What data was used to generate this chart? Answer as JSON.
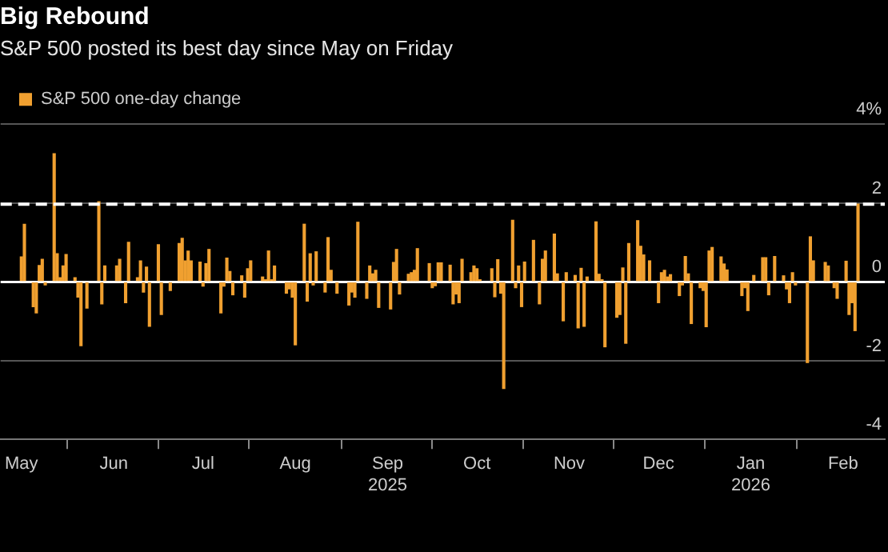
{
  "chart_data": {
    "type": "bar",
    "title": "Big Rebound",
    "subtitle": "S&P 500 posted its best day since May on Friday",
    "x": [
      "2025-05-01",
      "2025-05-02",
      "2025-05-05",
      "2025-05-06",
      "2025-05-07",
      "2025-05-08",
      "2025-05-09",
      "2025-05-12",
      "2025-05-13",
      "2025-05-14",
      "2025-05-15",
      "2025-05-16",
      "2025-05-19",
      "2025-05-20",
      "2025-05-21",
      "2025-05-23",
      "2025-05-27",
      "2025-05-28",
      "2025-05-29",
      "2025-06-02",
      "2025-06-03",
      "2025-06-05",
      "2025-06-06",
      "2025-06-09",
      "2025-06-10",
      "2025-06-11",
      "2025-06-12",
      "2025-06-13",
      "2025-06-16",
      "2025-06-17",
      "2025-06-20",
      "2025-06-23",
      "2025-06-24",
      "2025-06-25",
      "2025-06-26",
      "2025-06-27",
      "2025-06-30",
      "2025-07-01",
      "2025-07-02",
      "2025-07-03",
      "2025-07-07",
      "2025-07-08",
      "2025-07-09",
      "2025-07-10",
      "2025-07-11",
      "2025-07-14",
      "2025-07-15",
      "2025-07-16",
      "2025-07-17",
      "2025-07-21",
      "2025-07-22",
      "2025-07-23",
      "2025-07-24",
      "2025-07-25",
      "2025-07-29",
      "2025-07-30",
      "2025-07-31",
      "2025-08-01",
      "2025-08-04",
      "2025-08-05",
      "2025-08-06",
      "2025-08-07",
      "2025-08-08",
      "2025-08-11",
      "2025-08-12",
      "2025-08-13",
      "2025-08-15",
      "2025-08-19",
      "2025-08-20",
      "2025-08-21",
      "2025-08-22",
      "2025-08-25",
      "2025-08-26",
      "2025-08-27",
      "2025-08-28",
      "2025-08-29",
      "2025-09-02",
      "2025-09-03",
      "2025-09-04",
      "2025-09-05",
      "2025-09-08",
      "2025-09-09",
      "2025-09-10",
      "2025-09-11",
      "2025-09-15",
      "2025-09-16",
      "2025-09-17",
      "2025-09-18",
      "2025-09-19",
      "2025-09-22",
      "2025-09-23",
      "2025-09-24",
      "2025-09-25",
      "2025-09-26",
      "2025-09-29",
      "2025-09-30",
      "2025-10-01",
      "2025-10-02",
      "2025-10-06",
      "2025-10-07",
      "2025-10-08",
      "2025-10-09",
      "2025-10-10",
      "2025-10-13",
      "2025-10-14",
      "2025-10-15",
      "2025-10-16",
      "2025-10-17",
      "2025-10-20",
      "2025-10-22",
      "2025-10-23",
      "2025-10-24",
      "2025-10-27",
      "2025-10-28",
      "2025-10-30",
      "2025-10-31",
      "2025-11-03",
      "2025-11-04",
      "2025-11-05",
      "2025-11-06",
      "2025-11-07",
      "2025-11-10",
      "2025-11-11",
      "2025-11-12",
      "2025-11-13",
      "2025-11-17",
      "2025-11-18",
      "2025-11-19",
      "2025-11-20",
      "2025-11-21",
      "2025-11-24",
      "2025-11-25",
      "2025-11-26",
      "2025-11-28",
      "2025-12-01",
      "2025-12-02",
      "2025-12-03",
      "2025-12-04",
      "2025-12-05",
      "2025-12-08",
      "2025-12-09",
      "2025-12-10",
      "2025-12-11",
      "2025-12-12",
      "2025-12-15",
      "2025-12-16",
      "2025-12-17",
      "2025-12-18",
      "2025-12-19",
      "2025-12-22",
      "2025-12-23",
      "2025-12-24",
      "2025-12-29",
      "2025-12-30",
      "2025-12-31",
      "2026-01-02",
      "2026-01-05",
      "2026-01-06",
      "2026-01-07",
      "2026-01-09",
      "2026-01-12",
      "2026-01-13",
      "2026-01-14",
      "2026-01-15",
      "2026-01-16",
      "2026-01-20",
      "2026-01-21",
      "2026-01-22",
      "2026-01-26",
      "2026-01-27",
      "2026-01-29",
      "2026-01-30",
      "2026-02-02",
      "2026-02-03",
      "2026-02-04",
      "2026-02-05",
      "2026-02-06"
    ],
    "series": [
      {
        "name": "S&P 500 one-day change",
        "color": "#f0a030",
        "values": [
          0.63,
          1.46,
          -0.63,
          -0.79,
          0.41,
          0.57,
          -0.08,
          3.25,
          0.71,
          0.1,
          0.4,
          0.69,
          0.1,
          -0.39,
          -1.62,
          -0.67,
          2.03,
          -0.56,
          0.4,
          0.4,
          0.57,
          -0.53,
          1.0,
          0.1,
          0.53,
          -0.26,
          0.37,
          -1.13,
          0.94,
          -0.83,
          -0.22,
          0.97,
          1.1,
          0.53,
          0.78,
          0.53,
          0.5,
          -0.11,
          0.46,
          0.82,
          -0.79,
          -0.11,
          0.6,
          0.26,
          -0.33,
          0.15,
          -0.39,
          0.33,
          0.53,
          0.12,
          0.05,
          0.78,
          0.05,
          0.4,
          -0.29,
          -0.18,
          -0.39,
          -1.6,
          1.46,
          -0.49,
          0.71,
          -0.08,
          0.76,
          -0.26,
          1.12,
          0.29,
          -0.29,
          -0.59,
          -0.26,
          -0.39,
          1.51,
          -0.42,
          0.4,
          0.2,
          0.29,
          -0.65,
          -0.69,
          0.49,
          0.82,
          -0.31,
          0.19,
          0.23,
          0.29,
          0.84,
          0.46,
          -0.15,
          -0.1,
          0.48,
          0.48,
          0.42,
          -0.56,
          -0.31,
          -0.53,
          0.57,
          0.23,
          0.4,
          0.33,
          0.05,
          0.33,
          -0.38,
          0.56,
          -0.29,
          -2.71,
          1.56,
          -0.15,
          0.4,
          -0.63,
          0.5,
          1.05,
          -0.56,
          0.57,
          0.78,
          1.21,
          0.2,
          -0.99,
          0.23,
          0.16,
          -1.17,
          0.34,
          -1.13,
          0.12,
          1.52,
          0.19,
          0.05,
          -1.65,
          -0.9,
          -0.83,
          0.35,
          -1.56,
          0.97,
          1.55,
          0.9,
          0.68,
          0.53,
          -0.53,
          0.23,
          0.29,
          0.12,
          0.18,
          -0.35,
          -0.08,
          0.64,
          0.2,
          -1.06,
          -0.15,
          -0.22,
          -1.14,
          0.78,
          0.87,
          0.63,
          0.45,
          0.3,
          -0.35,
          -0.15,
          -0.73,
          0.16,
          0.61,
          0.61,
          -0.33,
          0.64,
          0.15,
          -0.18,
          -0.53,
          0.23,
          -0.08,
          -2.05,
          1.14,
          0.53,
          0.49,
          0.4,
          -0.15,
          -0.42,
          0.52,
          -0.83,
          -0.53,
          -1.24,
          1.97
        ]
      }
    ],
    "xlim": [
      "2025-04-24",
      "2026-02-15"
    ],
    "xticks": [
      {
        "value": "2025-05-01",
        "label": "May"
      },
      {
        "value": "2025-06-01",
        "label": "Jun"
      },
      {
        "value": "2025-07-01",
        "label": "Jul"
      },
      {
        "value": "2025-08-01",
        "label": "Aug"
      },
      {
        "value": "2025-09-01",
        "label": "Sep\n2025"
      },
      {
        "value": "2025-10-01",
        "label": "Oct"
      },
      {
        "value": "2025-11-01",
        "label": "Nov"
      },
      {
        "value": "2025-12-01",
        "label": "Dec"
      },
      {
        "value": "2026-01-01",
        "label": "Jan\n2026"
      },
      {
        "value": "2026-02-01",
        "label": "Feb"
      }
    ],
    "ylim": [
      -4,
      4
    ],
    "yticks": [
      {
        "value": 4,
        "label": "4%"
      },
      2,
      0,
      -2,
      -4
    ],
    "ref_lines": [
      {
        "axis": "y",
        "value": 1.97,
        "color": "#ffffff",
        "line_style": "dashed"
      }
    ],
    "grid": "y",
    "legend": "top left"
  }
}
